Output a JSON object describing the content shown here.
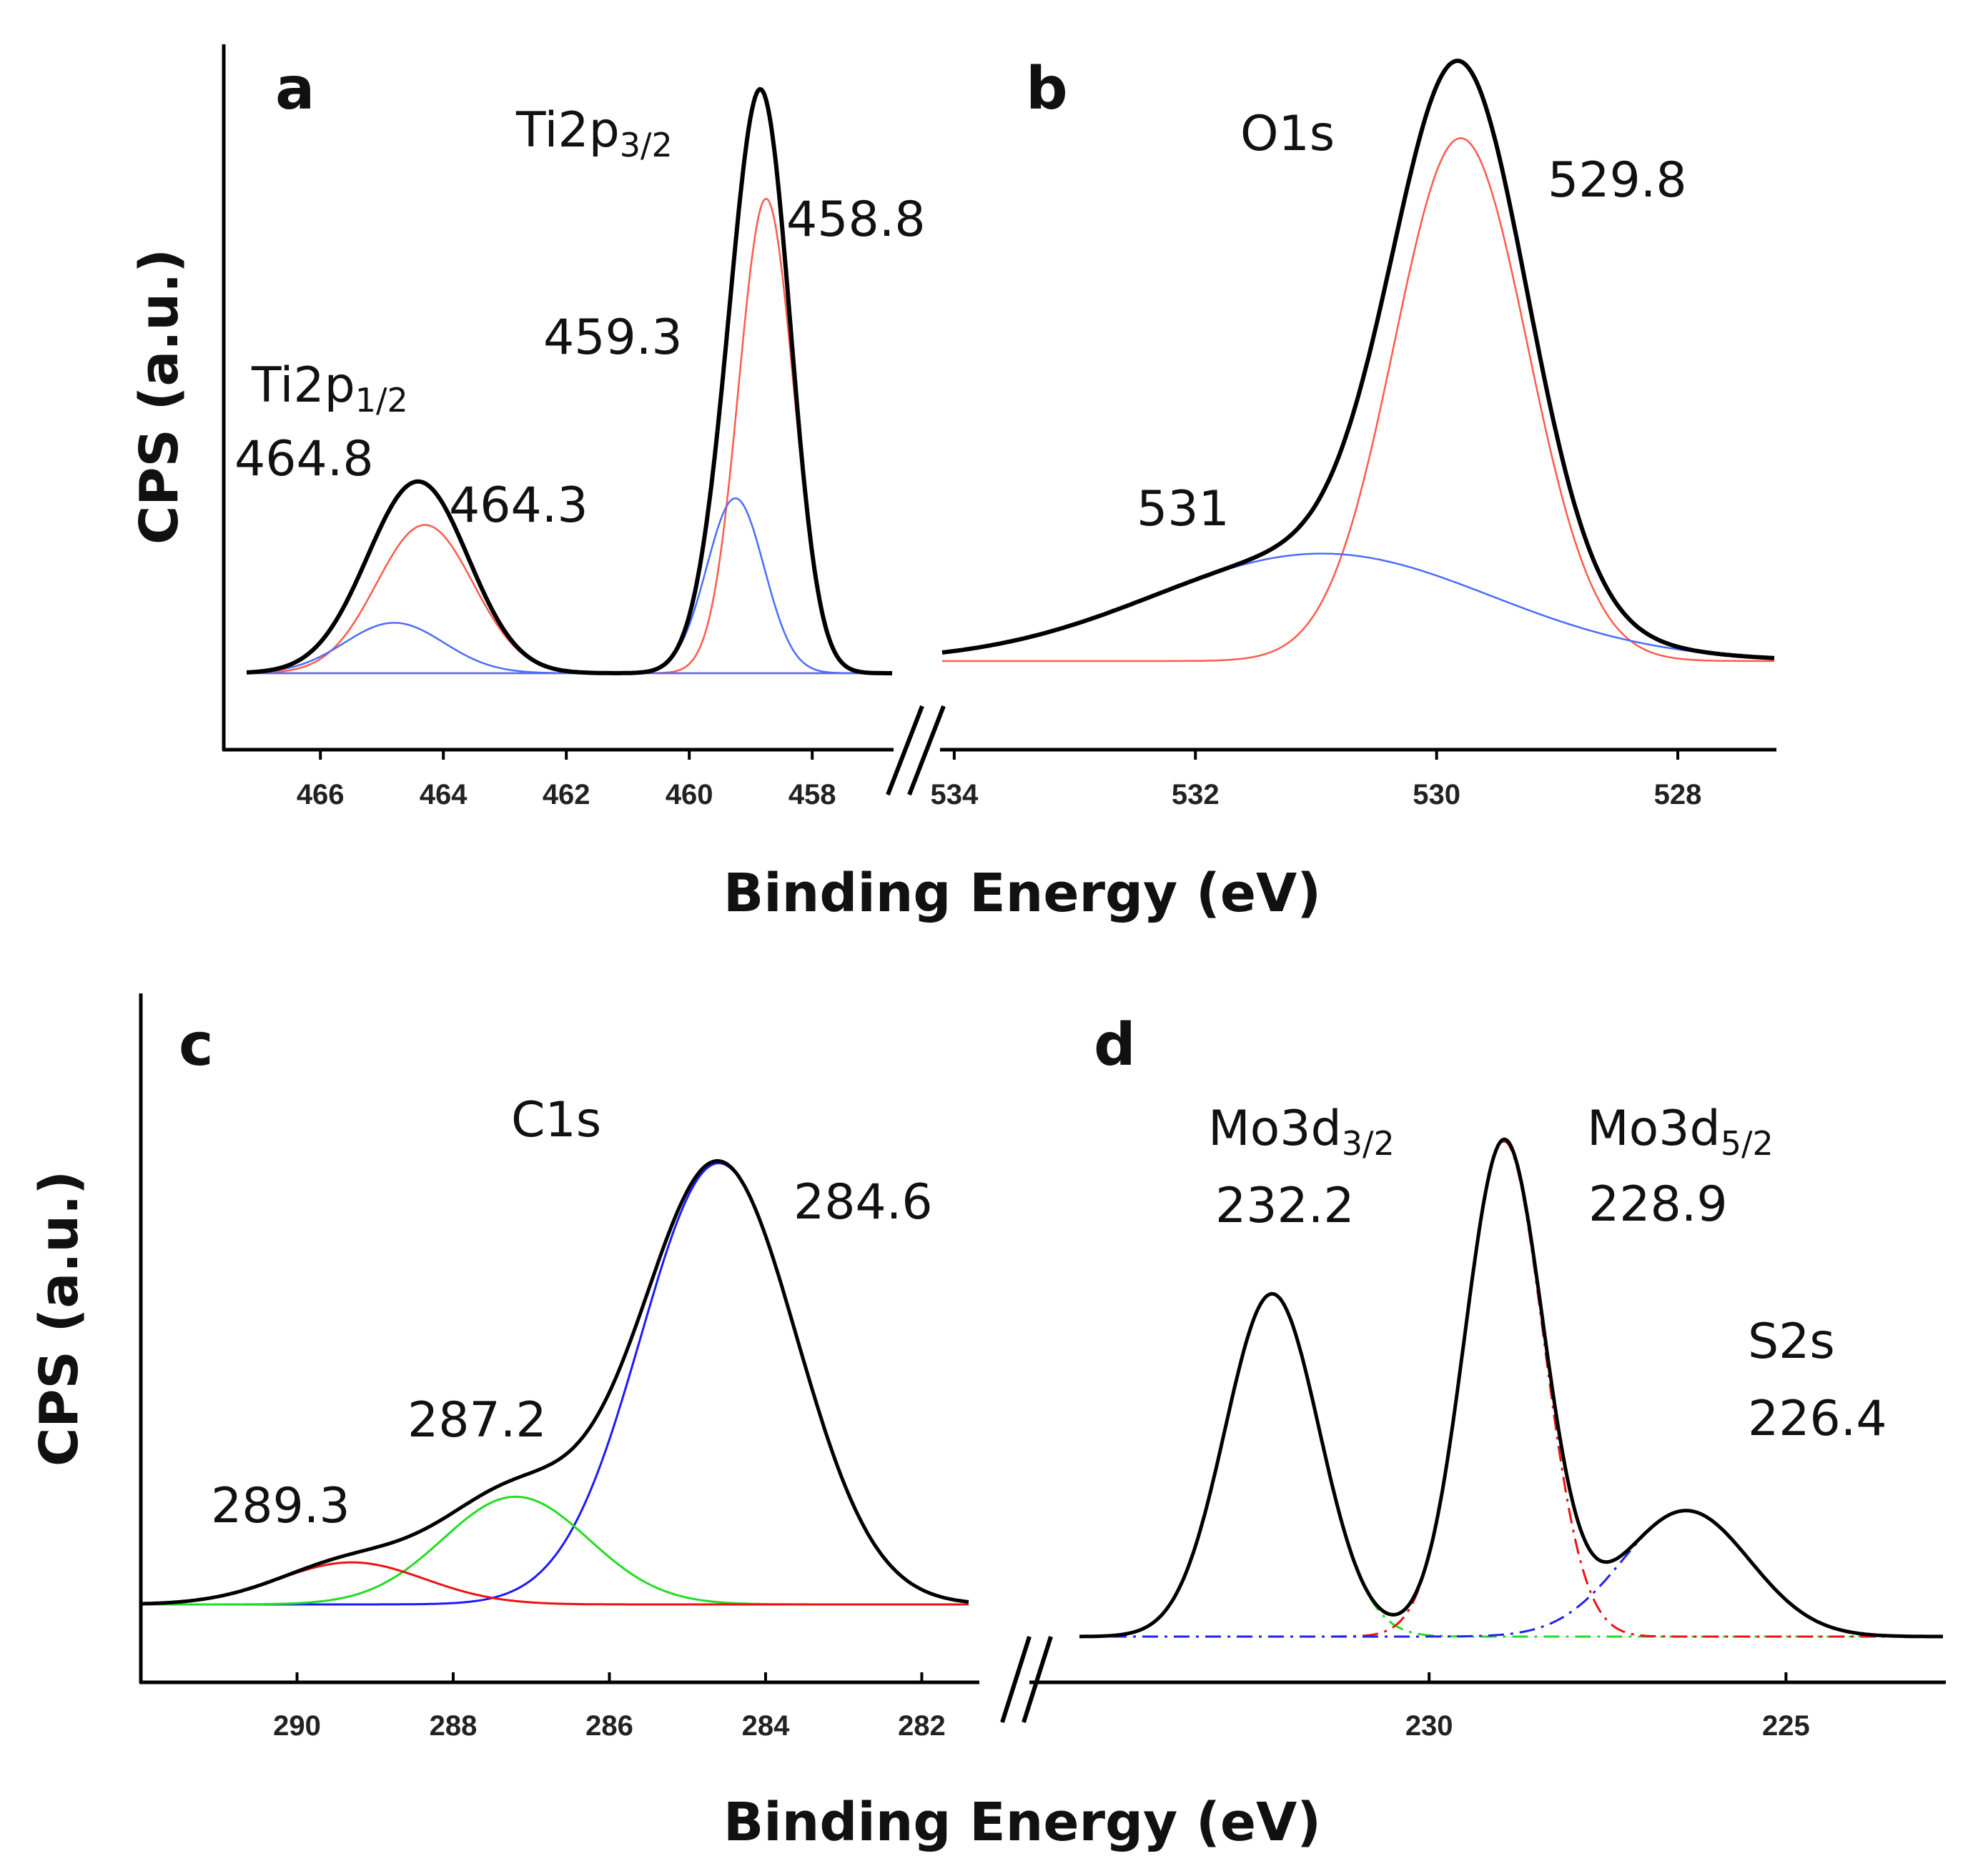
{
  "chart_data": [
    {
      "type": "line",
      "panel": "a",
      "title": "Ti2p",
      "xlabel": "Binding Energy (eV)",
      "ylabel": "CPS (a.u.)",
      "xlim": [
        467.2,
        456.7
      ],
      "x_ticks": [
        466,
        464,
        462,
        460,
        458
      ],
      "x_tick_labels": [
        "466",
        "464",
        "462",
        "460",
        "458"
      ],
      "labels": [
        {
          "main": "Ti2p",
          "sub": "3/2"
        },
        {
          "main": "Ti2p",
          "sub": "1/2"
        },
        {
          "main": "458.8"
        },
        {
          "main": "459.3"
        },
        {
          "main": "464.8"
        },
        {
          "main": "464.3"
        }
      ],
      "series": [
        {
          "name": "fit-red-Ti2p3/2",
          "color": "#ff5a4a",
          "style": "solid",
          "width": 2.5,
          "peaks": [
            {
              "center": 458.75,
              "height": 0.8,
              "fwhm": 1.05
            }
          ]
        },
        {
          "name": "fit-red-Ti2p1/2",
          "color": "#ff5a4a",
          "style": "solid",
          "width": 2.5,
          "peaks": [
            {
              "center": 464.3,
              "height": 0.25,
              "fwhm": 1.85
            }
          ]
        },
        {
          "name": "fit-blue-Ti2p3/2",
          "color": "#4a6cff",
          "style": "solid",
          "width": 2.5,
          "peaks": [
            {
              "center": 459.25,
              "height": 0.295,
              "fwhm": 1.1
            }
          ]
        },
        {
          "name": "fit-blue-Ti2p1/2",
          "color": "#4a6cff",
          "style": "solid",
          "width": 2.5,
          "peaks": [
            {
              "center": 464.8,
              "height": 0.085,
              "fwhm": 1.9
            }
          ]
        },
        {
          "name": "envelope",
          "color": "#000000",
          "style": "solid",
          "width": 6,
          "peaks": [
            {
              "center": 458.75,
              "height": 0.8,
              "fwhm": 1.05
            },
            {
              "center": 464.3,
              "height": 0.25,
              "fwhm": 1.85
            },
            {
              "center": 459.25,
              "height": 0.295,
              "fwhm": 1.1
            },
            {
              "center": 464.8,
              "height": 0.085,
              "fwhm": 1.9
            }
          ]
        }
      ]
    },
    {
      "type": "line",
      "panel": "b",
      "title": "O1s",
      "xlabel": "Binding Energy (eV)",
      "ylabel": "CPS (a.u.)",
      "xlim": [
        534.1,
        527.2
      ],
      "x_ticks": [
        534,
        532,
        530,
        528
      ],
      "x_tick_labels": [
        "534",
        "532",
        "530",
        "528"
      ],
      "labels": [
        {
          "main": "O1s"
        },
        {
          "main": "529.8"
        },
        {
          "main": "531"
        }
      ],
      "series": [
        {
          "name": "fit-red-529.8",
          "color": "#ff5a4a",
          "style": "solid",
          "width": 2.5,
          "peaks": [
            {
              "center": 529.8,
              "height": 0.9,
              "fwhm": 1.3
            }
          ]
        },
        {
          "name": "fit-blue-531",
          "color": "#4a6cff",
          "style": "solid",
          "width": 2.5,
          "peaks": [
            {
              "center": 530.95,
              "height": 0.185,
              "fwhm": 3.3
            }
          ]
        },
        {
          "name": "envelope",
          "color": "#000000",
          "style": "solid",
          "width": 6,
          "peaks": [
            {
              "center": 529.8,
              "height": 0.9,
              "fwhm": 1.3
            },
            {
              "center": 530.95,
              "height": 0.185,
              "fwhm": 3.3
            }
          ]
        }
      ]
    },
    {
      "type": "line",
      "panel": "c",
      "title": "C1s",
      "xlabel": "Binding Energy (eV)",
      "ylabel": "CPS (a.u.)",
      "xlim": [
        292,
        281.4
      ],
      "x_ticks": [
        290,
        288,
        286,
        284,
        282
      ],
      "x_tick_labels": [
        "290",
        "288",
        "286",
        "284",
        "282"
      ],
      "labels": [
        {
          "main": "C1s"
        },
        {
          "main": "284.6"
        },
        {
          "main": "287.2"
        },
        {
          "main": "289.3"
        }
      ],
      "series": [
        {
          "name": "fit-blue-284.6",
          "color": "#1a1aff",
          "style": "solid",
          "width": 3,
          "peaks": [
            {
              "center": 284.6,
              "height": 0.84,
              "fwhm": 2.35
            }
          ]
        },
        {
          "name": "fit-green-287.2",
          "color": "#22dd22",
          "style": "solid",
          "width": 3,
          "peaks": [
            {
              "center": 287.2,
              "height": 0.205,
              "fwhm": 2.2
            }
          ]
        },
        {
          "name": "fit-red-289.3",
          "color": "#ee1111",
          "style": "solid",
          "width": 3,
          "peaks": [
            {
              "center": 289.3,
              "height": 0.08,
              "fwhm": 2.2
            }
          ]
        },
        {
          "name": "envelope",
          "color": "#000000",
          "style": "solid",
          "width": 5,
          "peaks": [
            {
              "center": 284.6,
              "height": 0.84,
              "fwhm": 2.35
            },
            {
              "center": 287.2,
              "height": 0.205,
              "fwhm": 2.2
            },
            {
              "center": 289.3,
              "height": 0.08,
              "fwhm": 2.2
            }
          ]
        }
      ]
    },
    {
      "type": "line",
      "panel": "d",
      "title": "Mo3d / S2s",
      "xlabel": "Binding Energy (eV)",
      "ylabel": "CPS (a.u.)",
      "xlim": [
        234.9,
        222.8
      ],
      "x_ticks": [
        230,
        225
      ],
      "x_tick_labels": [
        "230",
        "225"
      ],
      "labels": [
        {
          "main": "Mo3d",
          "sub": "3/2"
        },
        {
          "main": "232.2"
        },
        {
          "main": "Mo3d",
          "sub": "5/2"
        },
        {
          "main": "228.9"
        },
        {
          "main": "S2s"
        },
        {
          "main": "226.4"
        }
      ],
      "series": [
        {
          "name": "fit-green-Mo3d3/2",
          "color": "#22dd22",
          "style": "dashdot",
          "width": 3,
          "peaks": [
            {
              "center": 232.2,
              "height": 0.585,
              "fwhm": 1.55
            }
          ]
        },
        {
          "name": "fit-red-Mo3d5/2",
          "color": "#ee1111",
          "style": "dashdot",
          "width": 3,
          "peaks": [
            {
              "center": 228.95,
              "height": 0.845,
              "fwhm": 1.3
            }
          ]
        },
        {
          "name": "fit-blue-S2s",
          "color": "#2222ee",
          "style": "dashdot",
          "width": 3,
          "peaks": [
            {
              "center": 226.4,
              "height": 0.215,
              "fwhm": 2.1
            }
          ]
        },
        {
          "name": "envelope",
          "color": "#000000",
          "style": "solid",
          "width": 5,
          "peaks": [
            {
              "center": 232.2,
              "height": 0.585,
              "fwhm": 1.55
            },
            {
              "center": 228.95,
              "height": 0.845,
              "fwhm": 1.3
            },
            {
              "center": 226.4,
              "height": 0.215,
              "fwhm": 2.1
            }
          ]
        }
      ]
    }
  ],
  "axes": {
    "ylabel_top": "CPS (a.u.)",
    "ylabel_bottom": "CPS (a.u.)",
    "xlabel_top": "Binding Energy (eV)",
    "xlabel_bottom": "Binding Energy (eV)",
    "break_mark": "//"
  },
  "panels": {
    "a": "a",
    "b": "b",
    "c": "c",
    "d": "d"
  }
}
